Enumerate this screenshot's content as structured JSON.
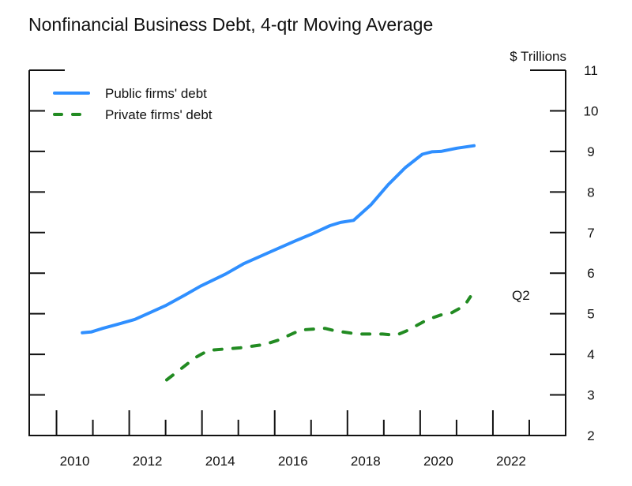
{
  "chart_data": {
    "type": "line",
    "title": "Nonfinancial Business Debt, 4-qtr Moving Average",
    "ylabel": "$ Trillions",
    "xlabel": "",
    "xlim": [
      2009.25,
      2024
    ],
    "ylim": [
      2,
      11
    ],
    "y_axis_side": "right",
    "xticks": [
      2010,
      2012,
      2014,
      2016,
      2018,
      2020,
      2022
    ],
    "yticks": [
      2,
      3,
      4,
      5,
      6,
      7,
      8,
      9,
      10,
      11
    ],
    "grid": false,
    "legend_position": "top-left",
    "annotation": "Q2",
    "series": [
      {
        "name": "Public firms' debt",
        "color": "#2f8fff",
        "style": "solid",
        "x": [
          2010.71,
          2010.95,
          2011.27,
          2011.64,
          2012.15,
          2012.58,
          2013.02,
          2013.53,
          2013.96,
          2014.65,
          2015.16,
          2015.92,
          2016.58,
          2017.01,
          2017.52,
          2017.81,
          2018.17,
          2018.64,
          2019.12,
          2019.59,
          2020.06,
          2020.32,
          2020.57,
          2021.01,
          2021.48
        ],
        "y": [
          4.53,
          4.55,
          4.64,
          4.73,
          4.86,
          5.03,
          5.21,
          5.46,
          5.68,
          5.98,
          6.24,
          6.54,
          6.8,
          6.96,
          7.17,
          7.25,
          7.3,
          7.68,
          8.18,
          8.6,
          8.93,
          8.99,
          9.0,
          9.08,
          9.14
        ]
      },
      {
        "name": "Private firms' debt",
        "color": "#228b22",
        "style": "dashed",
        "x": [
          2013.03,
          2013.82,
          2014.18,
          2015.05,
          2015.7,
          2016.07,
          2016.72,
          2017.38,
          2017.66,
          2018.28,
          2018.97,
          2019.34,
          2019.63,
          2020.21,
          2020.57,
          2020.86,
          2021.22,
          2021.38
        ],
        "y": [
          3.37,
          3.92,
          4.1,
          4.16,
          4.24,
          4.34,
          4.6,
          4.64,
          4.58,
          4.5,
          4.5,
          4.47,
          4.58,
          4.86,
          4.97,
          5.02,
          5.2,
          5.42
        ]
      }
    ]
  }
}
